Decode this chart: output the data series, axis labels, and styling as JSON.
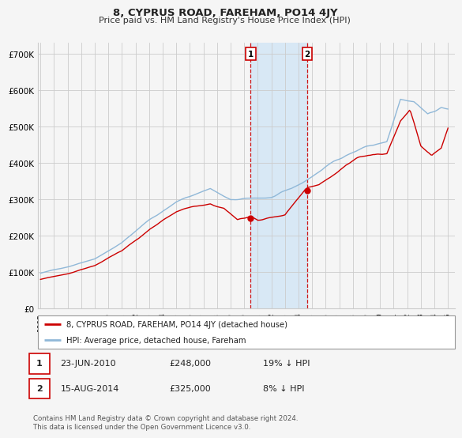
{
  "title": "8, CYPRUS ROAD, FAREHAM, PO14 4JY",
  "subtitle": "Price paid vs. HM Land Registry's House Price Index (HPI)",
  "ylabel_ticks": [
    "£0",
    "£100K",
    "£200K",
    "£300K",
    "£400K",
    "£500K",
    "£600K",
    "£700K"
  ],
  "ytick_vals": [
    0,
    100000,
    200000,
    300000,
    400000,
    500000,
    600000,
    700000
  ],
  "ylim": [
    0,
    730000
  ],
  "xlim_start": 1994.8,
  "xlim_end": 2025.5,
  "bg_color": "#f5f5f5",
  "plot_bg_color": "#f5f5f5",
  "grid_color": "#cccccc",
  "hpi_color": "#90b8d8",
  "price_color": "#cc0000",
  "highlight_bg": "#d8e8f5",
  "purchase1_date": 2010.47,
  "purchase1_price": 248000,
  "purchase2_date": 2014.62,
  "purchase2_price": 325000,
  "legend_label1": "8, CYPRUS ROAD, FAREHAM, PO14 4JY (detached house)",
  "legend_label2": "HPI: Average price, detached house, Fareham",
  "table_row1": [
    "1",
    "23-JUN-2010",
    "£248,000",
    "19% ↓ HPI"
  ],
  "table_row2": [
    "2",
    "15-AUG-2014",
    "£325,000",
    "8% ↓ HPI"
  ],
  "footer": "Contains HM Land Registry data © Crown copyright and database right 2024.\nThis data is licensed under the Open Government Licence v3.0.",
  "xtick_years": [
    1995,
    1996,
    1997,
    1998,
    1999,
    2000,
    2001,
    2002,
    2003,
    2004,
    2005,
    2006,
    2007,
    2008,
    2009,
    2010,
    2011,
    2012,
    2013,
    2014,
    2015,
    2016,
    2017,
    2018,
    2019,
    2020,
    2021,
    2022,
    2023,
    2024,
    2025
  ]
}
